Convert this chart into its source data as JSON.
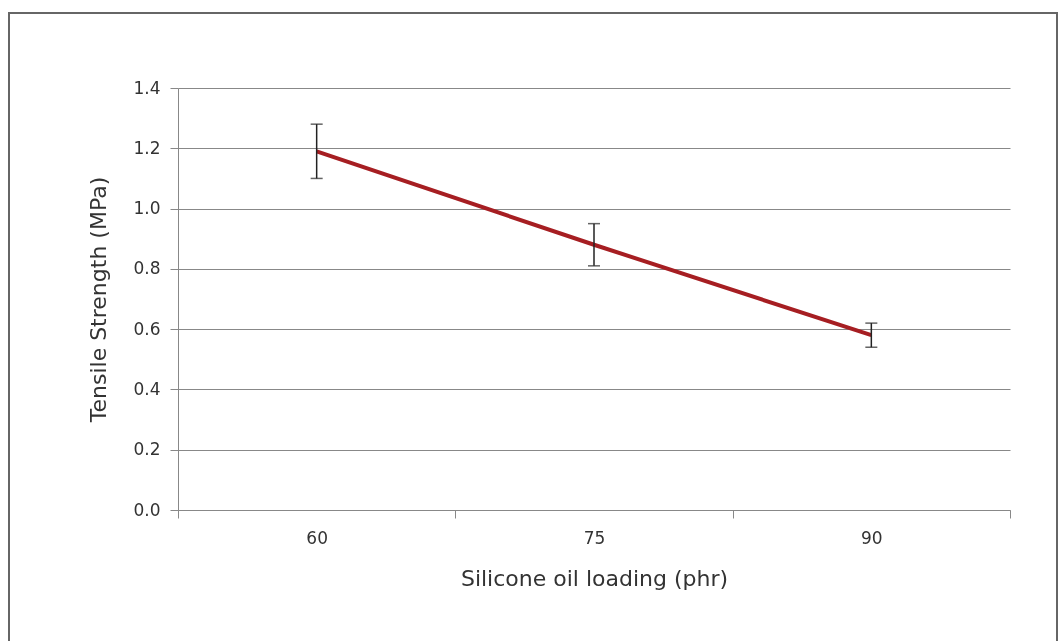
{
  "chart_data": {
    "type": "line",
    "xlabel": "Silicone oil loading (phr)",
    "ylabel": "Tensile Strength (MPa)",
    "categories": [
      "60",
      "75",
      "90"
    ],
    "series": [
      {
        "color": "#a61e22",
        "values": [
          1.19,
          0.88,
          0.58
        ],
        "errors": [
          0.09,
          0.07,
          0.04
        ]
      }
    ],
    "ylim": [
      0,
      1.4
    ],
    "yticks": [
      {
        "value": 0,
        "label": "0.0"
      },
      {
        "value": 0.2,
        "label": "0.2"
      },
      {
        "value": 0.4,
        "label": "0.4"
      },
      {
        "value": 0.6,
        "label": "0.6"
      },
      {
        "value": 0.8,
        "label": "0.8"
      },
      {
        "value": 1.0,
        "label": "1.0"
      },
      {
        "value": 1.2,
        "label": "1.2"
      },
      {
        "value": 1.4,
        "label": "1.4"
      }
    ],
    "grid": "y",
    "legend": false,
    "marker": "none",
    "line_style": "solid"
  }
}
